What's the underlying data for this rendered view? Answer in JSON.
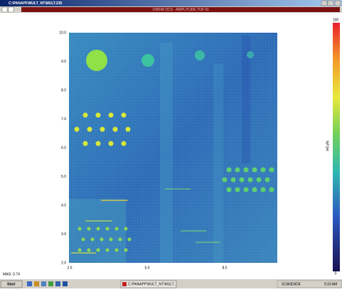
{
  "window": {
    "title": "C:\\PANAPF\\MULT_NT\\MULT.235",
    "header": "100548 OCS - AMPLITUDE TOF 01"
  },
  "plot": {
    "yticks": [
      "10.0",
      "9.0",
      "8.0",
      "7.0",
      "6.0",
      "5.0",
      "4.0",
      "3.0",
      "2.0"
    ],
    "xticks": [
      "2.0",
      "5.0",
      "8.0"
    ],
    "colorbar": {
      "top": "100",
      "bottom": "0",
      "unit": "%FSH"
    }
  },
  "status": {
    "mag": "MAG: 0.74"
  },
  "taskbar": {
    "start": "Start",
    "task": "C:\\PANAPF\\MULT_NT\\MULT...",
    "tray": "SCANDATA",
    "clock": "9:33 AM"
  }
}
